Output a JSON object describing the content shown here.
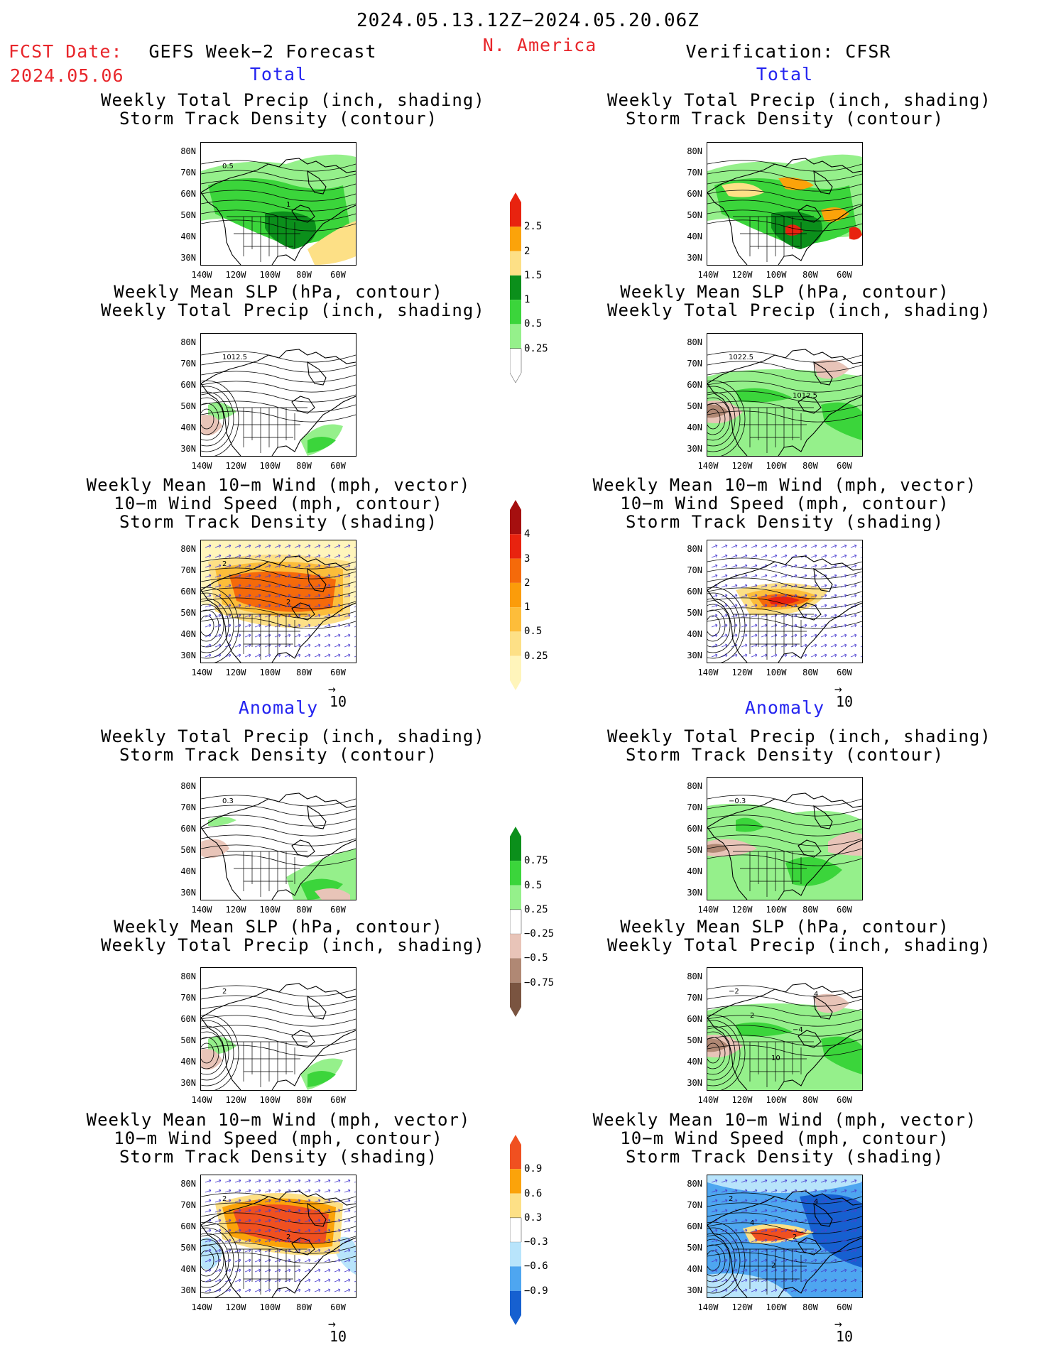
{
  "header": {
    "date_range": "2024.05.13.12Z−2024.05.20.06Z",
    "fcst_label": "FCST Date:",
    "fcst_date": "2024.05.06",
    "left_title": "GEFS Week−2 Forecast",
    "region": "N. America",
    "right_title": "Verification: CFSR"
  },
  "sections": {
    "total": "Total",
    "anomaly": "Anomaly"
  },
  "titles": {
    "precip_track": [
      "Weekly Total Precip (inch, shading)",
      "Storm Track Density (contour)"
    ],
    "slp_precip": [
      "Weekly Mean SLP (hPa, contour)",
      "Weekly Total Precip (inch, shading)"
    ],
    "wind_track": [
      "Weekly Mean 10−m Wind (mph, vector)",
      "10−m Wind Speed (mph, contour)",
      "Storm Track Density (shading)"
    ]
  },
  "axes": {
    "lat_labels": [
      "80N",
      "70N",
      "60N",
      "50N",
      "40N",
      "30N"
    ],
    "lon_labels": [
      "140W",
      "120W",
      "100W",
      "80W",
      "60W"
    ]
  },
  "vector_reference": "10",
  "colorbars": {
    "precip_total": {
      "levels": [
        "2.5",
        "2",
        "1.5",
        "1",
        "0.5",
        "0.25"
      ],
      "colors": [
        "#e8230f",
        "#fba30a",
        "#fde086",
        "#0b8f1b",
        "#3bd53b",
        "#95f08b",
        "#ffffff"
      ]
    },
    "track_total": {
      "levels": [
        "4",
        "3",
        "2",
        "1",
        "0.5",
        "0.25"
      ],
      "colors": [
        "#a50f0f",
        "#e8230f",
        "#f56a0a",
        "#fb9c0a",
        "#fdbd3a",
        "#fde086",
        "#fff5bb"
      ]
    },
    "precip_anom": {
      "levels": [
        "0.75",
        "0.5",
        "0.25",
        "−0.25",
        "−0.5",
        "−0.75"
      ],
      "colors": [
        "#0b8f1b",
        "#3bd53b",
        "#95f08b",
        "#ffffff",
        "#e8c4b8",
        "#b08874",
        "#7a5440"
      ]
    },
    "track_anom": {
      "levels": [
        "0.9",
        "0.6",
        "0.3",
        "−0.3",
        "−0.6",
        "−0.9"
      ],
      "colors": [
        "#f05020",
        "#fba30a",
        "#fde086",
        "#ffffff",
        "#b8e4fb",
        "#4ea6f0",
        "#1660d0"
      ]
    }
  },
  "contour_labels": {
    "p1_left": [
      "0.5",
      "1"
    ],
    "p2_left": [
      "1012.5"
    ],
    "p2_right": [
      "1022.5",
      "1012.5"
    ],
    "p3_left": [
      "2",
      "2"
    ],
    "p4_left": [
      "0.3"
    ],
    "p4_right": [
      "−0.3"
    ],
    "p5_left": [
      "2"
    ],
    "p5_right": [
      "−2",
      "−4",
      "4",
      "10",
      "2"
    ],
    "p6_left": [
      "2",
      "2"
    ],
    "p6_right": [
      "2",
      "2",
      "4",
      "2",
      "4"
    ]
  }
}
